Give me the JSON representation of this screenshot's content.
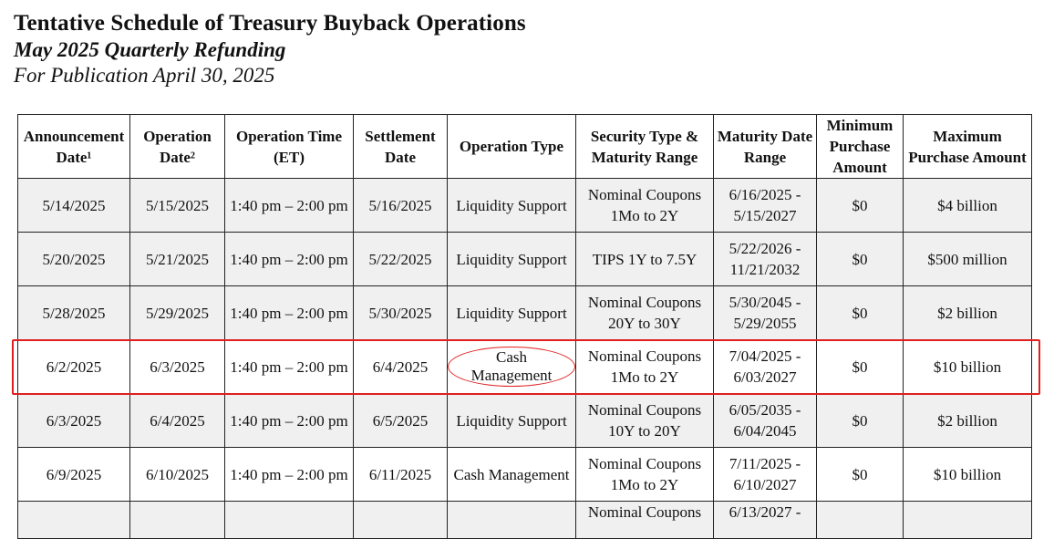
{
  "header": {
    "title": "Tentative Schedule of Treasury Buyback Operations",
    "subtitle": "May 2025 Quarterly Refunding",
    "publication": "For Publication April 30, 2025"
  },
  "table": {
    "columns": [
      "Announcement Date¹",
      "Operation Date²",
      "Operation Time (ET)",
      "Settlement Date",
      "Operation Type",
      "Security Type & Maturity Range",
      "Maturity Date Range",
      "Minimum Purchase Amount",
      "Maximum Purchase Amount"
    ],
    "rows": [
      [
        "5/14/2025",
        "5/15/2025",
        "1:40 pm – 2:00 pm",
        "5/16/2025",
        "Liquidity Support",
        "Nominal Coupons 1Mo to 2Y",
        "6/16/2025 - 5/15/2027",
        "$0",
        "$4 billion"
      ],
      [
        "5/20/2025",
        "5/21/2025",
        "1:40 pm – 2:00 pm",
        "5/22/2025",
        "Liquidity Support",
        "TIPS 1Y to 7.5Y",
        "5/22/2026 - 11/21/2032",
        "$0",
        "$500 million"
      ],
      [
        "5/28/2025",
        "5/29/2025",
        "1:40 pm – 2:00 pm",
        "5/30/2025",
        "Liquidity Support",
        "Nominal Coupons 20Y to 30Y",
        "5/30/2045 - 5/29/2055",
        "$0",
        "$2 billion"
      ],
      [
        "6/2/2025",
        "6/3/2025",
        "1:40 pm – 2:00 pm",
        "6/4/2025",
        "Cash Management",
        "Nominal Coupons 1Mo to 2Y",
        "7/04/2025 - 6/03/2027",
        "$0",
        "$10 billion"
      ],
      [
        "6/3/2025",
        "6/4/2025",
        "1:40 pm – 2:00 pm",
        "6/5/2025",
        "Liquidity Support",
        "Nominal Coupons 10Y to 20Y",
        "6/05/2035 - 6/04/2045",
        "$0",
        "$2 billion"
      ],
      [
        "6/9/2025",
        "6/10/2025",
        "1:40 pm – 2:00 pm",
        "6/11/2025",
        "Cash Management",
        "Nominal Coupons 1Mo to 2Y",
        "7/11/2025 - 6/10/2027",
        "$0",
        "$10 billion"
      ],
      [
        "",
        "",
        "",
        "",
        "",
        "Nominal Coupons",
        "6/13/2027 -",
        "",
        ""
      ]
    ]
  },
  "annotation": {
    "highlight_color": "#e02020",
    "highlighted_row": 3,
    "circled_cell": "Cash Management"
  }
}
